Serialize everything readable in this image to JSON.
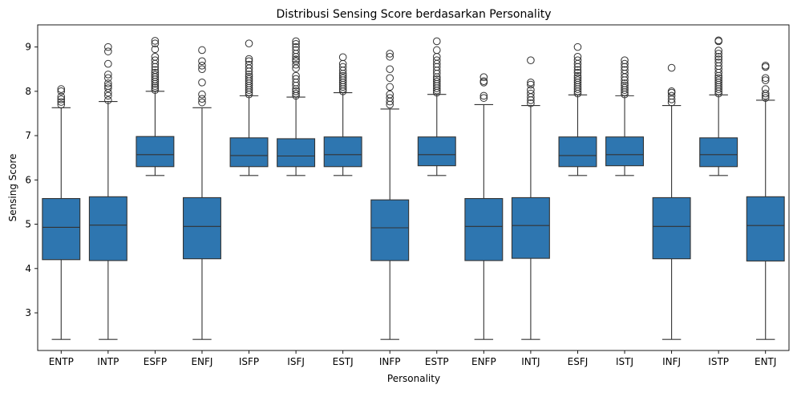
{
  "chart_data": {
    "type": "box",
    "title": "Distribusi Sensing Score berdasarkan Personality",
    "xlabel": "Personality",
    "ylabel": "Sensing Score",
    "ylim": [
      2.15,
      9.5
    ],
    "yticks": [
      3,
      4,
      5,
      6,
      7,
      8,
      9
    ],
    "grid": false,
    "color": "#2e76b0",
    "line_color": "#333333",
    "categories": [
      "ENTP",
      "INTP",
      "ESFP",
      "ENFJ",
      "ISFP",
      "ISFJ",
      "ESTJ",
      "INFP",
      "ESTP",
      "ENFP",
      "INTJ",
      "ESFJ",
      "ISTJ",
      "INFJ",
      "ISTP",
      "ENTJ"
    ],
    "boxes": [
      {
        "name": "ENTP",
        "whislo": 2.4,
        "q1": 4.2,
        "med": 4.93,
        "q3": 5.58,
        "whishi": 7.63,
        "fliers": [
          7.7,
          7.76,
          7.82,
          7.88,
          8.0,
          8.05
        ]
      },
      {
        "name": "INTP",
        "whislo": 2.4,
        "q1": 4.18,
        "med": 4.98,
        "q3": 5.62,
        "whishi": 7.77,
        "fliers": [
          7.8,
          7.9,
          7.97,
          8.07,
          8.12,
          8.18,
          8.3,
          8.38,
          8.62,
          8.9,
          9.0
        ]
      },
      {
        "name": "ESFP",
        "whislo": 6.1,
        "q1": 6.3,
        "med": 6.57,
        "q3": 6.98,
        "whishi": 8.0,
        "fliers": [
          8.03,
          8.08,
          8.12,
          8.17,
          8.22,
          8.27,
          8.32,
          8.37,
          8.42,
          8.48,
          8.55,
          8.62,
          8.7,
          8.78,
          8.95,
          9.08,
          9.14
        ]
      },
      {
        "name": "ENFJ",
        "whislo": 2.4,
        "q1": 4.22,
        "med": 4.95,
        "q3": 5.6,
        "whishi": 7.63,
        "fliers": [
          7.75,
          7.83,
          7.93,
          8.2,
          8.5,
          8.58,
          8.68,
          8.93
        ]
      },
      {
        "name": "ISFP",
        "whislo": 6.1,
        "q1": 6.3,
        "med": 6.55,
        "q3": 6.95,
        "whishi": 7.9,
        "fliers": [
          7.93,
          7.98,
          8.03,
          8.08,
          8.13,
          8.18,
          8.23,
          8.28,
          8.33,
          8.38,
          8.45,
          8.52,
          8.6,
          8.68,
          8.73,
          9.08
        ]
      },
      {
        "name": "ISFJ",
        "whislo": 6.1,
        "q1": 6.3,
        "med": 6.54,
        "q3": 6.93,
        "whishi": 7.87,
        "fliers": [
          7.9,
          7.95,
          8.0,
          8.05,
          8.13,
          8.2,
          8.28,
          8.35,
          8.52,
          8.6,
          8.68,
          8.72,
          8.78,
          8.85,
          8.93,
          9.0,
          9.07,
          9.13
        ]
      },
      {
        "name": "ESTJ",
        "whislo": 6.1,
        "q1": 6.3,
        "med": 6.57,
        "q3": 6.97,
        "whishi": 7.97,
        "fliers": [
          8.0,
          8.05,
          8.1,
          8.15,
          8.2,
          8.25,
          8.3,
          8.35,
          8.4,
          8.47,
          8.55,
          8.62,
          8.77
        ]
      },
      {
        "name": "INFP",
        "whislo": 2.4,
        "q1": 4.18,
        "med": 4.92,
        "q3": 5.55,
        "whishi": 7.6,
        "fliers": [
          7.7,
          7.77,
          7.85,
          7.93,
          8.1,
          8.3,
          8.5,
          8.78,
          8.85
        ]
      },
      {
        "name": "ESTP",
        "whislo": 6.1,
        "q1": 6.32,
        "med": 6.57,
        "q3": 6.97,
        "whishi": 7.93,
        "fliers": [
          7.97,
          8.02,
          8.07,
          8.12,
          8.17,
          8.22,
          8.27,
          8.32,
          8.4,
          8.47,
          8.55,
          8.62,
          8.7,
          8.78,
          8.93,
          9.13
        ]
      },
      {
        "name": "ENFP",
        "whislo": 2.4,
        "q1": 4.18,
        "med": 4.95,
        "q3": 5.58,
        "whishi": 7.7,
        "fliers": [
          7.85,
          7.9,
          8.2,
          8.23,
          8.32
        ]
      },
      {
        "name": "INTJ",
        "whislo": 2.4,
        "q1": 4.23,
        "med": 4.97,
        "q3": 5.6,
        "whishi": 7.68,
        "fliers": [
          7.73,
          7.8,
          7.87,
          7.95,
          8.03,
          8.15,
          8.2,
          8.7
        ]
      },
      {
        "name": "ESFJ",
        "whislo": 6.1,
        "q1": 6.3,
        "med": 6.55,
        "q3": 6.97,
        "whishi": 7.92,
        "fliers": [
          7.95,
          8.0,
          8.05,
          8.1,
          8.15,
          8.2,
          8.25,
          8.3,
          8.35,
          8.42,
          8.48,
          8.55,
          8.62,
          8.7,
          8.78,
          9.0
        ]
      },
      {
        "name": "ISTJ",
        "whislo": 6.1,
        "q1": 6.32,
        "med": 6.57,
        "q3": 6.97,
        "whishi": 7.9,
        "fliers": [
          7.93,
          7.98,
          8.03,
          8.08,
          8.13,
          8.18,
          8.25,
          8.32,
          8.4,
          8.48,
          8.55,
          8.62,
          8.7
        ]
      },
      {
        "name": "INFJ",
        "whislo": 2.4,
        "q1": 4.22,
        "med": 4.95,
        "q3": 5.6,
        "whishi": 7.68,
        "fliers": [
          7.75,
          7.82,
          7.9,
          7.97,
          8.0,
          8.53
        ]
      },
      {
        "name": "ISTP",
        "whislo": 6.1,
        "q1": 6.3,
        "med": 6.57,
        "q3": 6.95,
        "whishi": 7.92,
        "fliers": [
          7.95,
          8.0,
          8.05,
          8.1,
          8.15,
          8.2,
          8.25,
          8.3,
          8.35,
          8.42,
          8.5,
          8.57,
          8.65,
          8.72,
          8.78,
          8.85,
          8.92,
          9.13,
          9.15
        ]
      },
      {
        "name": "ENTJ",
        "whislo": 2.4,
        "q1": 4.17,
        "med": 4.97,
        "q3": 5.62,
        "whishi": 7.8,
        "fliers": [
          7.85,
          7.9,
          7.95,
          8.05,
          8.25,
          8.3,
          8.55,
          8.58
        ]
      }
    ]
  }
}
